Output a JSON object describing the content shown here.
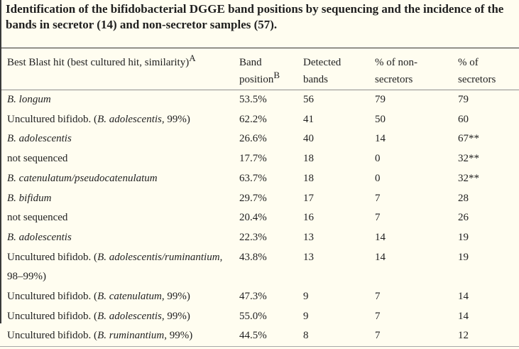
{
  "colors": {
    "background": "#fffdf0",
    "text": "#1f1f1f",
    "rule_top": "#323232",
    "rule_header": "#8f8f8f",
    "rule_bottom": "#a8a8a8",
    "left_edge": "#3a3a3a"
  },
  "title": "Identification of the bifidobacterial DGGE band positions by sequencing and the incidence of the bands in secretor (14) and non-secretor samples (57).",
  "table": {
    "columns": [
      {
        "lines": [
          "Best Blast hit (best cultured hit, similarity)"
        ],
        "sup": "A"
      },
      {
        "lines": [
          "Band",
          "position"
        ],
        "sup": "B"
      },
      {
        "lines": [
          "Detected",
          "bands"
        ]
      },
      {
        "lines": [
          "% of non-",
          "secretors"
        ]
      },
      {
        "lines": [
          "% of",
          "secretors"
        ]
      }
    ],
    "rows": [
      {
        "hit": [
          {
            "t": "B. longum",
            "i": true
          }
        ],
        "band": "53.5%",
        "detected": "56",
        "non": "79",
        "sec": "79"
      },
      {
        "hit": [
          {
            "t": "Uncultured bifidob. (",
            "i": false
          },
          {
            "t": "B. adolescentis",
            "i": true
          },
          {
            "t": ", 99%)",
            "i": false
          }
        ],
        "band": "62.2%",
        "detected": "41",
        "non": "50",
        "sec": "60"
      },
      {
        "hit": [
          {
            "t": "B. adolescentis",
            "i": true
          }
        ],
        "band": "26.6%",
        "detected": "40",
        "non": "14",
        "sec": "67**"
      },
      {
        "hit": [
          {
            "t": "not sequenced",
            "i": false
          }
        ],
        "band": "17.7%",
        "detected": "18",
        "non": "0",
        "sec": "32**"
      },
      {
        "hit": [
          {
            "t": "B. catenulatum/pseudocatenulatum",
            "i": true
          }
        ],
        "band": "63.7%",
        "detected": "18",
        "non": "0",
        "sec": "32**"
      },
      {
        "hit": [
          {
            "t": "B. bifidum",
            "i": true
          }
        ],
        "band": "29.7%",
        "detected": "17",
        "non": "7",
        "sec": "28"
      },
      {
        "hit": [
          {
            "t": "not sequenced",
            "i": false
          }
        ],
        "band": "20.4%",
        "detected": "16",
        "non": "7",
        "sec": "26"
      },
      {
        "hit": [
          {
            "t": "B. adolescentis",
            "i": true
          }
        ],
        "band": "22.3%",
        "detected": "13",
        "non": "14",
        "sec": "19"
      },
      {
        "hit": [
          {
            "t": "Uncultured bifidob. (",
            "i": false
          },
          {
            "t": "B. adolescentis/ruminantium",
            "i": true
          },
          {
            "t": ", 98–99%)",
            "i": false
          }
        ],
        "band": "43.8%",
        "detected": "13",
        "non": "14",
        "sec": "19"
      },
      {
        "hit": [
          {
            "t": "Uncultured bifidob. (",
            "i": false
          },
          {
            "t": "B. catenulatum",
            "i": true
          },
          {
            "t": ", 99%)",
            "i": false
          }
        ],
        "band": "47.3%",
        "detected": "9",
        "non": "7",
        "sec": "14"
      },
      {
        "hit": [
          {
            "t": "Uncultured bifidob. (",
            "i": false
          },
          {
            "t": "B. adolescentis",
            "i": true
          },
          {
            "t": ", 99%)",
            "i": false
          }
        ],
        "band": "55.0%",
        "detected": "9",
        "non": "7",
        "sec": "14"
      },
      {
        "hit": [
          {
            "t": "Uncultured bifidob. (",
            "i": false
          },
          {
            "t": "B. ruminantium",
            "i": true
          },
          {
            "t": ", 99%)",
            "i": false
          }
        ],
        "band": "44.5%",
        "detected": "8",
        "non": "7",
        "sec": "12"
      }
    ]
  }
}
